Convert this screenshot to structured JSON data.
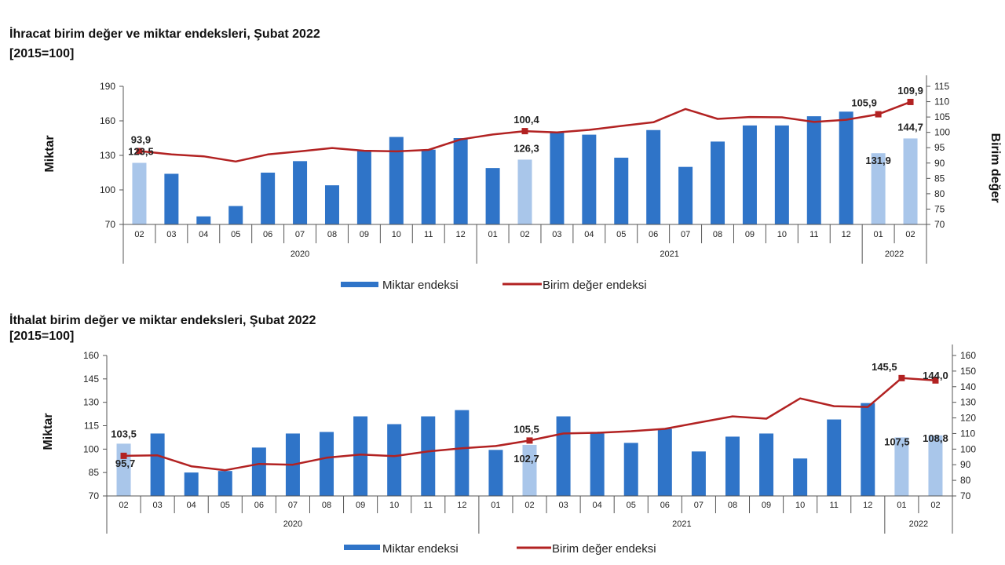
{
  "chart_data": [
    {
      "type": "bar",
      "title": "İhracat birim değer ve miktar endeksleri, Şubat 2022",
      "subtitle": "[2015=100]",
      "ylabel": "Miktar",
      "y2label": "Birim değer",
      "ylim": [
        70,
        190
      ],
      "yticks": [
        70,
        100,
        130,
        160,
        190
      ],
      "y2lim": [
        70,
        115
      ],
      "y2ticks": [
        70,
        75,
        80,
        85,
        90,
        95,
        100,
        105,
        110,
        115
      ],
      "categories": [
        "02",
        "03",
        "04",
        "05",
        "06",
        "07",
        "08",
        "09",
        "10",
        "11",
        "12",
        "01",
        "02",
        "03",
        "04",
        "05",
        "06",
        "07",
        "08",
        "09",
        "10",
        "11",
        "12",
        "01",
        "02"
      ],
      "years": [
        {
          "label": "2020",
          "count": 11
        },
        {
          "label": "2021",
          "count": 12
        },
        {
          "label": "2022",
          "count": 2
        }
      ],
      "highlight_indices": [
        0,
        12,
        23,
        24
      ],
      "legend": "bottom-center",
      "series": [
        {
          "name": "Miktar endeksi",
          "kind": "bar",
          "axis": "left",
          "color": "#2f74c8",
          "highlight_color": "#a9c6ea",
          "values": [
            123.5,
            114,
            77,
            86,
            115,
            125,
            104,
            134,
            146,
            135,
            145,
            119,
            126.3,
            150,
            148,
            128,
            152,
            120,
            142,
            156,
            156,
            164,
            168,
            131.9,
            144.7
          ]
        },
        {
          "name": "Birim değer endeksi",
          "kind": "line",
          "axis": "right",
          "color": "#b22222",
          "values": [
            93.9,
            92.8,
            92.2,
            90.5,
            92.8,
            93.8,
            94.9,
            94.0,
            93.8,
            94.3,
            97.7,
            99.3,
            100.4,
            100.0,
            100.8,
            102.1,
            103.3,
            107.6,
            104.4,
            105.0,
            104.9,
            103.4,
            104.1,
            105.9,
            109.9
          ]
        }
      ],
      "data_labels": [
        {
          "index": 0,
          "series": 0,
          "text": "123,5"
        },
        {
          "index": 0,
          "series": 1,
          "text": "93,9"
        },
        {
          "index": 12,
          "series": 0,
          "text": "126,3"
        },
        {
          "index": 12,
          "series": 1,
          "text": "100,4"
        },
        {
          "index": 23,
          "series": 0,
          "text": "131,9"
        },
        {
          "index": 23,
          "series": 1,
          "text": "105,9"
        },
        {
          "index": 24,
          "series": 0,
          "text": "144,7"
        },
        {
          "index": 24,
          "series": 1,
          "text": "109,9"
        }
      ]
    },
    {
      "type": "bar",
      "title": "İthalat birim değer ve miktar endeksleri, Şubat 2022",
      "subtitle": "[2015=100]",
      "ylabel": "Miktar",
      "y2label": "",
      "ylim": [
        70,
        160
      ],
      "yticks": [
        70,
        85,
        100,
        115,
        130,
        145,
        160
      ],
      "y2lim": [
        70,
        160
      ],
      "y2ticks": [
        70,
        80,
        90,
        100,
        110,
        120,
        130,
        140,
        150,
        160
      ],
      "categories": [
        "02",
        "03",
        "04",
        "05",
        "06",
        "07",
        "08",
        "09",
        "10",
        "11",
        "12",
        "01",
        "02",
        "03",
        "04",
        "05",
        "06",
        "07",
        "08",
        "09",
        "10",
        "11",
        "12",
        "01",
        "02"
      ],
      "years": [
        {
          "label": "2020",
          "count": 11
        },
        {
          "label": "2021",
          "count": 12
        },
        {
          "label": "2022",
          "count": 2
        }
      ],
      "highlight_indices": [
        0,
        12,
        23,
        24
      ],
      "legend": "bottom-center",
      "series": [
        {
          "name": "Miktar endeksi",
          "kind": "bar",
          "axis": "left",
          "color": "#2f74c8",
          "highlight_color": "#a9c6ea",
          "values": [
            103.5,
            110,
            85,
            86,
            101,
            110,
            111,
            121,
            116,
            121,
            125,
            99.5,
            102.7,
            121,
            110,
            104,
            113,
            98.5,
            108,
            110,
            94,
            119,
            129.5,
            107.5,
            108.8
          ]
        },
        {
          "name": "Birim değer endeksi",
          "kind": "line",
          "axis": "right",
          "color": "#b22222",
          "values": [
            95.7,
            96,
            89,
            86.5,
            90.5,
            90,
            94.5,
            96.5,
            95.5,
            98.5,
            100.5,
            102,
            105.5,
            110,
            110.5,
            111.5,
            113,
            117,
            121,
            119.5,
            132.5,
            127.5,
            127,
            145.5,
            144.0
          ]
        }
      ],
      "data_labels": [
        {
          "index": 0,
          "series": 0,
          "text": "103,5"
        },
        {
          "index": 0,
          "series": 1,
          "text": "95,7"
        },
        {
          "index": 12,
          "series": 1,
          "text": "105,5"
        },
        {
          "index": 12,
          "series": 0,
          "text": "102,7"
        },
        {
          "index": 23,
          "series": 1,
          "text": "145,5"
        },
        {
          "index": 23,
          "series": 0,
          "text": "107,5"
        },
        {
          "index": 24,
          "series": 1,
          "text": "144,0"
        },
        {
          "index": 24,
          "series": 0,
          "text": "108,8"
        }
      ]
    }
  ]
}
